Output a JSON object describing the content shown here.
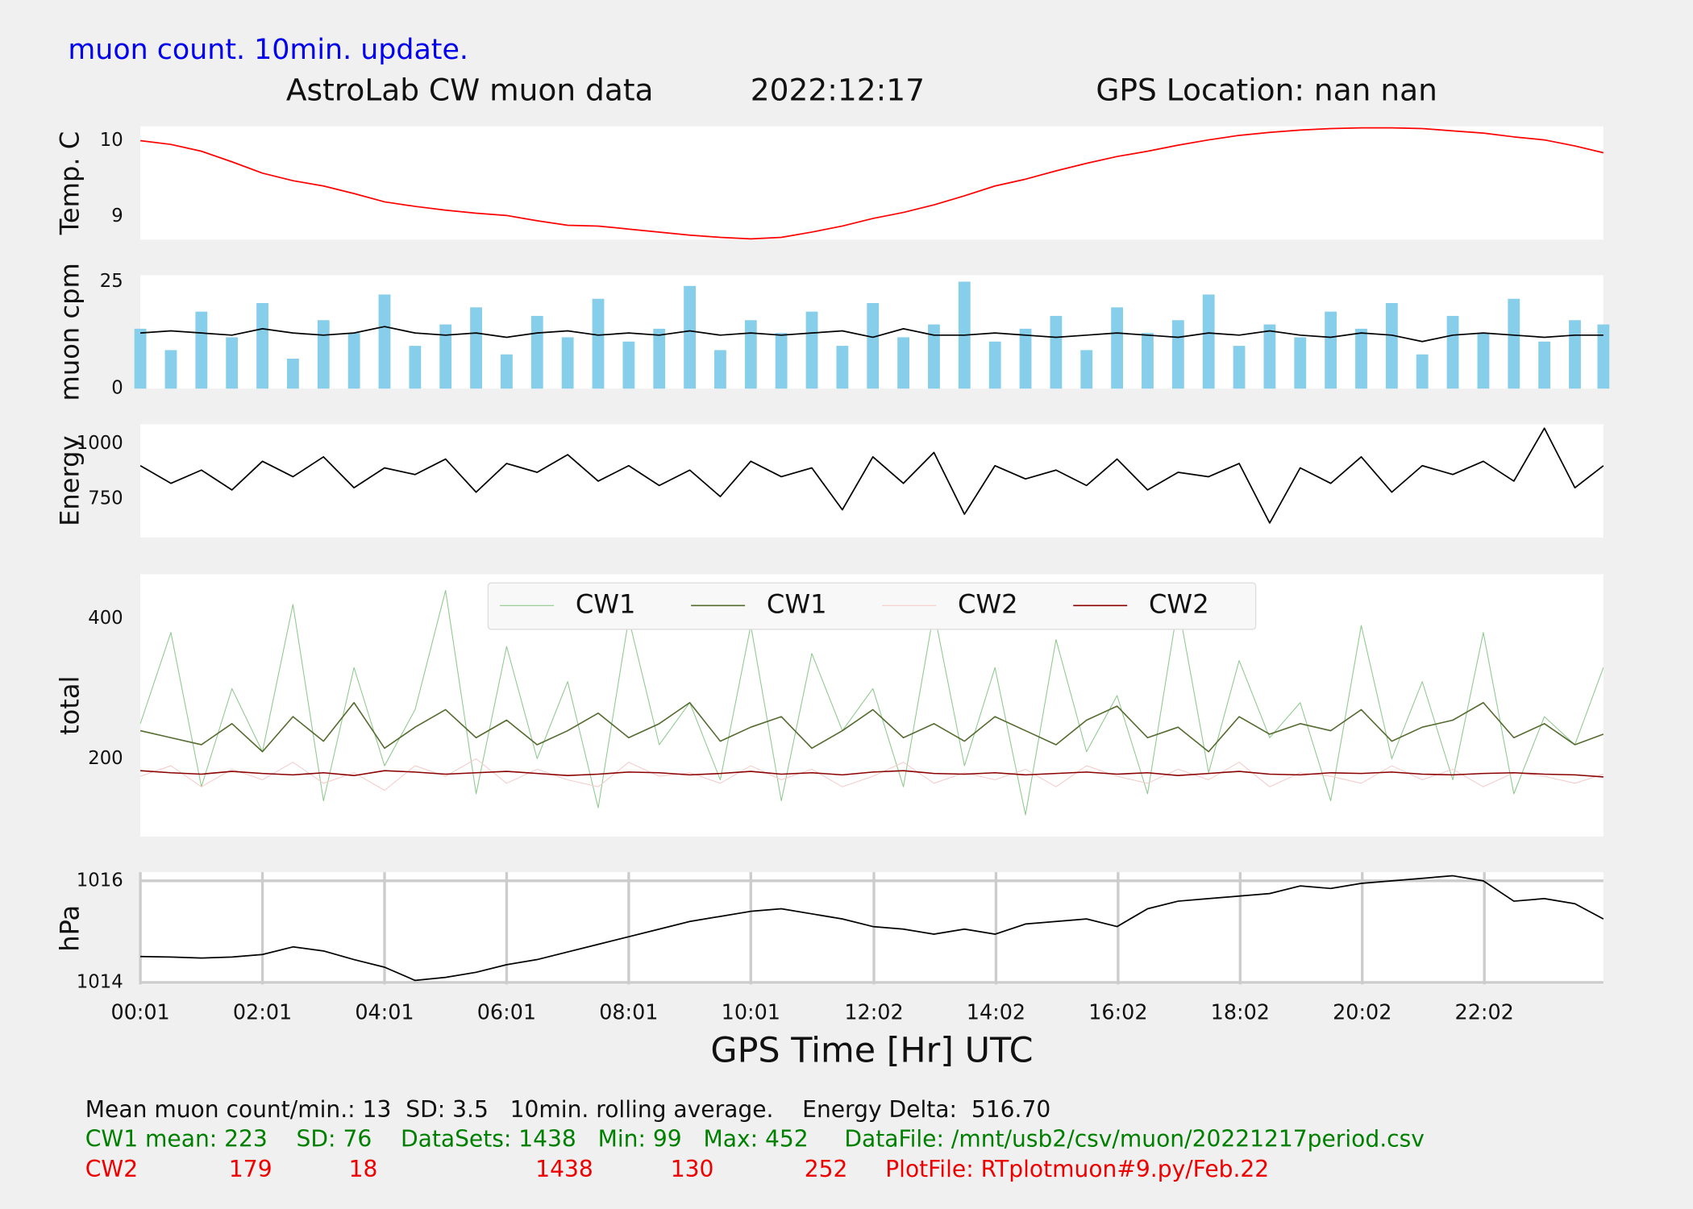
{
  "header": {
    "note": "muon count.  10min. update.",
    "title": "AstroLab CW muon data",
    "date": "2022:12:17",
    "location": "GPS Location: nan   nan"
  },
  "chart_data": [
    {
      "type": "line",
      "ylabel": "Temp. C",
      "ylim": [
        8.69,
        10.19
      ],
      "yticks": [
        9,
        10
      ],
      "x": [
        1,
        31,
        61,
        91,
        121,
        151,
        181,
        211,
        241,
        271,
        301,
        331,
        361,
        391,
        421,
        451,
        481,
        511,
        541,
        571,
        601,
        631,
        661,
        691,
        721,
        751,
        781,
        811,
        841,
        871,
        901,
        931,
        961,
        991,
        1021,
        1051,
        1081,
        1111,
        1141,
        1171,
        1201,
        1231,
        1261,
        1291,
        1321,
        1351,
        1381,
        1411,
        1439
      ],
      "series": [
        {
          "name": "Temp",
          "color": "#ff0000",
          "values": [
            10.0,
            9.95,
            9.86,
            9.72,
            9.57,
            9.47,
            9.4,
            9.3,
            9.19,
            9.13,
            9.08,
            9.04,
            9.01,
            8.94,
            8.88,
            8.87,
            8.83,
            8.79,
            8.75,
            8.72,
            8.7,
            8.72,
            8.79,
            8.87,
            8.97,
            9.05,
            9.15,
            9.27,
            9.4,
            9.49,
            9.6,
            9.7,
            9.79,
            9.86,
            9.94,
            10.01,
            10.07,
            10.11,
            10.14,
            10.16,
            10.17,
            10.17,
            10.16,
            10.13,
            10.1,
            10.05,
            10.01,
            9.93,
            9.84
          ]
        }
      ]
    },
    {
      "type": "bar",
      "ylabel": "muon cpm",
      "ylim": [
        0,
        26.5
      ],
      "yticks": [
        0,
        25
      ],
      "x": [
        1,
        31,
        61,
        91,
        121,
        151,
        181,
        211,
        241,
        271,
        301,
        331,
        361,
        391,
        421,
        451,
        481,
        511,
        541,
        571,
        601,
        631,
        661,
        691,
        721,
        751,
        781,
        811,
        841,
        871,
        901,
        931,
        961,
        991,
        1021,
        1051,
        1081,
        1111,
        1141,
        1171,
        1201,
        1231,
        1261,
        1291,
        1321,
        1351,
        1381,
        1411,
        1439
      ],
      "series": [
        {
          "name": "muon cpm",
          "type": "bar",
          "color": "#87ceeb",
          "values": [
            14,
            9,
            18,
            12,
            20,
            7,
            16,
            13,
            22,
            10,
            15,
            19,
            8,
            17,
            12,
            21,
            11,
            14,
            24,
            9,
            16,
            13,
            18,
            10,
            20,
            12,
            15,
            25,
            11,
            14,
            17,
            9,
            19,
            13,
            16,
            22,
            10,
            15,
            12,
            18,
            14,
            20,
            8,
            17,
            13,
            21,
            11,
            16,
            15
          ]
        },
        {
          "name": "rolling average",
          "type": "line",
          "color": "#000000",
          "values": [
            13,
            13.5,
            13,
            12.5,
            14,
            13,
            12.5,
            13,
            14.5,
            13,
            12.5,
            13,
            12,
            13,
            13.5,
            12.5,
            13,
            12.5,
            13.5,
            12.5,
            13,
            12.5,
            13,
            13.5,
            12,
            14,
            12.5,
            12.5,
            13,
            12.5,
            12,
            12.5,
            13,
            12.5,
            12,
            13,
            12.5,
            13.5,
            12.5,
            12,
            13,
            12.5,
            11,
            12.5,
            13,
            12.5,
            12,
            12.5,
            12.5
          ]
        }
      ]
    },
    {
      "type": "line",
      "ylabel": "Energy",
      "ylim": [
        574,
        1088
      ],
      "yticks": [
        750,
        1000
      ],
      "x": [
        1,
        31,
        61,
        91,
        121,
        151,
        181,
        211,
        241,
        271,
        301,
        331,
        361,
        391,
        421,
        451,
        481,
        511,
        541,
        571,
        601,
        631,
        661,
        691,
        721,
        751,
        781,
        811,
        841,
        871,
        901,
        931,
        961,
        991,
        1021,
        1051,
        1081,
        1111,
        1141,
        1171,
        1201,
        1231,
        1261,
        1291,
        1321,
        1351,
        1381,
        1411,
        1439
      ],
      "series": [
        {
          "name": "Energy",
          "color": "#000000",
          "values": [
            900,
            820,
            880,
            790,
            920,
            850,
            940,
            800,
            890,
            860,
            930,
            780,
            910,
            870,
            950,
            830,
            900,
            810,
            880,
            760,
            920,
            850,
            890,
            700,
            940,
            820,
            960,
            680,
            900,
            840,
            880,
            810,
            930,
            790,
            870,
            850,
            910,
            640,
            890,
            820,
            940,
            780,
            900,
            860,
            920,
            830,
            1070,
            800,
            900
          ]
        }
      ]
    },
    {
      "type": "line",
      "ylabel": "total",
      "ylim": [
        89,
        463
      ],
      "yticks": [
        200,
        400
      ],
      "legend": "upper center",
      "x": [
        1,
        31,
        61,
        91,
        121,
        151,
        181,
        211,
        241,
        271,
        301,
        331,
        361,
        391,
        421,
        451,
        481,
        511,
        541,
        571,
        601,
        631,
        661,
        691,
        721,
        751,
        781,
        811,
        841,
        871,
        901,
        931,
        961,
        991,
        1021,
        1051,
        1081,
        1111,
        1141,
        1171,
        1201,
        1231,
        1261,
        1291,
        1321,
        1351,
        1381,
        1411,
        1439
      ],
      "series": [
        {
          "name": "CW1",
          "color": "#8fc98f",
          "width": 0.8,
          "values": [
            250,
            380,
            160,
            300,
            210,
            420,
            140,
            330,
            190,
            270,
            440,
            150,
            360,
            200,
            310,
            130,
            400,
            220,
            280,
            170,
            390,
            140,
            350,
            240,
            300,
            160,
            410,
            190,
            330,
            120,
            370,
            210,
            290,
            150,
            420,
            180,
            340,
            230,
            280,
            140,
            390,
            200,
            310,
            170,
            380,
            150,
            260,
            220,
            330
          ]
        },
        {
          "name": "CW1",
          "color": "#556b2f",
          "width": 1.2,
          "values": [
            240,
            230,
            220,
            250,
            210,
            260,
            225,
            280,
            215,
            245,
            270,
            230,
            255,
            220,
            240,
            265,
            230,
            250,
            280,
            225,
            245,
            260,
            215,
            240,
            270,
            230,
            250,
            225,
            260,
            240,
            220,
            255,
            275,
            230,
            245,
            210,
            260,
            235,
            250,
            240,
            270,
            225,
            245,
            255,
            280,
            230,
            250,
            220,
            235
          ]
        },
        {
          "name": "CW2",
          "color": "#f4cccc",
          "width": 0.8,
          "values": [
            175,
            190,
            160,
            185,
            170,
            195,
            165,
            180,
            155,
            190,
            175,
            200,
            165,
            185,
            170,
            160,
            195,
            175,
            180,
            165,
            190,
            170,
            185,
            160,
            175,
            195,
            165,
            180,
            170,
            185,
            160,
            190,
            175,
            165,
            185,
            170,
            195,
            160,
            180,
            175,
            165,
            190,
            170,
            185,
            160,
            180,
            175,
            165,
            178
          ]
        },
        {
          "name": "CW2",
          "color": "#8b0000",
          "width": 1.2,
          "values": [
            183,
            180,
            178,
            182,
            179,
            177,
            180,
            176,
            183,
            181,
            178,
            180,
            182,
            179,
            176,
            178,
            181,
            180,
            177,
            179,
            182,
            178,
            180,
            177,
            181,
            183,
            179,
            178,
            180,
            177,
            179,
            181,
            178,
            180,
            176,
            179,
            182,
            178,
            177,
            180,
            179,
            181,
            178,
            177,
            179,
            180,
            178,
            177,
            174
          ]
        }
      ]
    },
    {
      "type": "line",
      "ylabel": "hPa",
      "ylim": [
        1013.96,
        1016.17
      ],
      "yticks": [
        1014,
        1016
      ],
      "grid": true,
      "xlabel": "GPS Time  [Hr] UTC",
      "xlim": [
        1,
        1439
      ],
      "x": [
        1,
        31,
        61,
        91,
        121,
        151,
        181,
        211,
        241,
        271,
        301,
        331,
        361,
        391,
        421,
        451,
        481,
        511,
        541,
        571,
        601,
        631,
        661,
        691,
        721,
        751,
        781,
        811,
        841,
        871,
        901,
        931,
        961,
        991,
        1021,
        1051,
        1081,
        1111,
        1141,
        1171,
        1201,
        1231,
        1261,
        1291,
        1321,
        1351,
        1381,
        1411,
        1439
      ],
      "xticks": [
        {
          "value": 1,
          "label": "00:01"
        },
        {
          "value": 121,
          "label": "02:01"
        },
        {
          "value": 241,
          "label": "04:01"
        },
        {
          "value": 361,
          "label": "06:01"
        },
        {
          "value": 481,
          "label": "08:01"
        },
        {
          "value": 601,
          "label": "10:01"
        },
        {
          "value": 722,
          "label": "12:02"
        },
        {
          "value": 842,
          "label": "14:02"
        },
        {
          "value": 962,
          "label": "16:02"
        },
        {
          "value": 1082,
          "label": "18:02"
        },
        {
          "value": 1202,
          "label": "20:02"
        },
        {
          "value": 1322,
          "label": "22:02"
        }
      ],
      "series": [
        {
          "name": "Pressure",
          "color": "#000000",
          "values": [
            1014.51,
            1014.5,
            1014.48,
            1014.5,
            1014.55,
            1014.7,
            1014.62,
            1014.45,
            1014.3,
            1014.04,
            1014.1,
            1014.2,
            1014.35,
            1014.45,
            1014.6,
            1014.75,
            1014.9,
            1015.05,
            1015.2,
            1015.3,
            1015.4,
            1015.45,
            1015.35,
            1015.25,
            1015.1,
            1015.05,
            1014.95,
            1015.05,
            1014.95,
            1015.15,
            1015.2,
            1015.25,
            1015.1,
            1015.45,
            1015.6,
            1015.65,
            1015.7,
            1015.75,
            1015.9,
            1015.85,
            1015.95,
            1016.0,
            1016.05,
            1016.1,
            1016.0,
            1015.6,
            1015.65,
            1015.55,
            1015.25
          ]
        }
      ]
    }
  ],
  "footer": {
    "line1": "Mean muon count/min.: 13  SD: 3.5   10min. rolling average.    Energy Delta:  516.70",
    "line2": "CW1 mean: 223    SD: 76    DataSets: 1438   Min: 99   Max: 452     DataFile: /mnt/usb2/csv/muon/20221217period.csv",
    "line3": [
      "CW2",
      "179",
      "18",
      "1438",
      "130",
      "252",
      "PlotFile: RTplotmuon#9.py/Feb.22"
    ]
  }
}
